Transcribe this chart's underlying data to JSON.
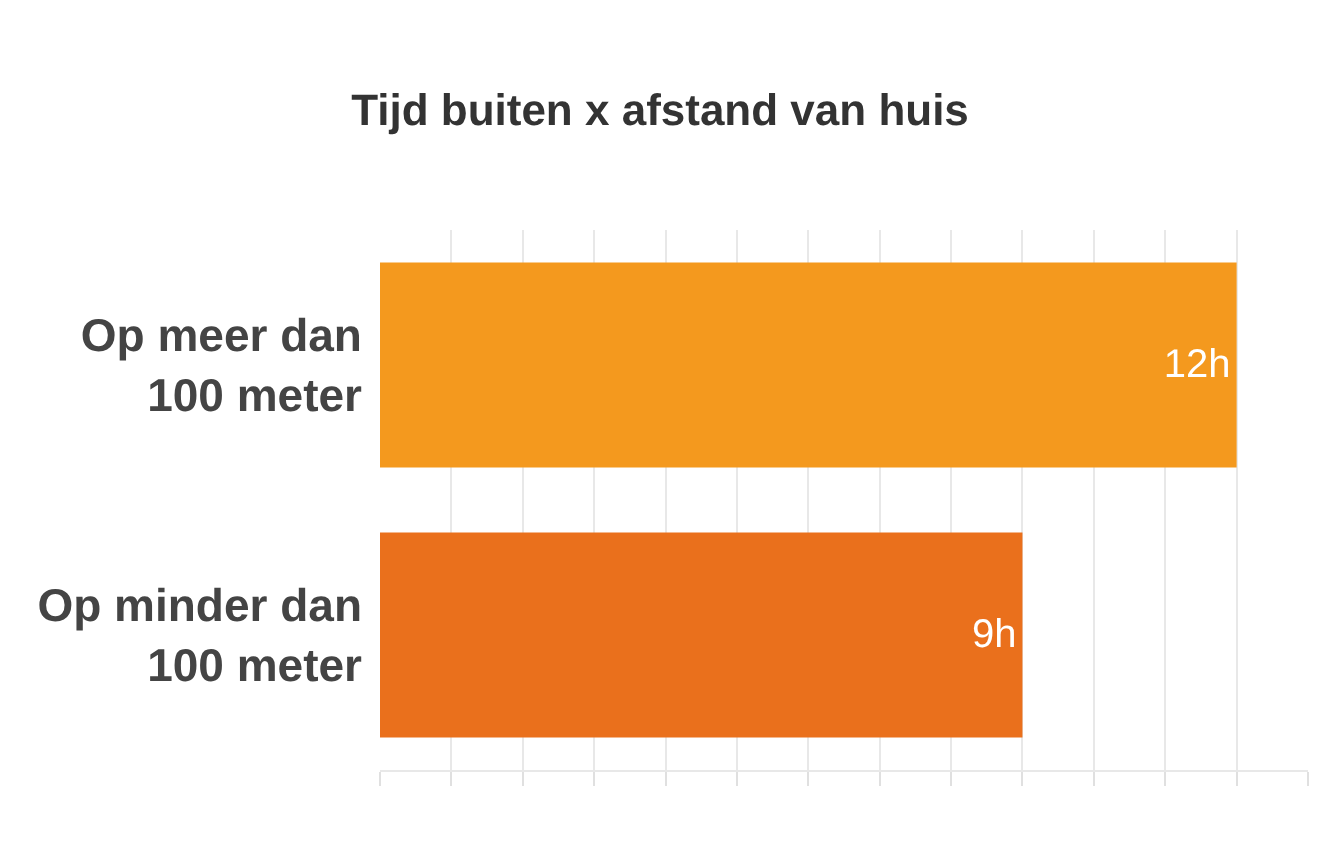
{
  "chart_data": {
    "type": "bar",
    "orientation": "horizontal",
    "title": "Tijd buiten x afstand van huis",
    "categories": [
      "Op meer dan\n100 meter",
      "Op minder dan\n100 meter"
    ],
    "values": [
      12,
      9
    ],
    "colors": [
      "#f4991e",
      "#ea701c"
    ],
    "value_labels": [
      "12h",
      "9h"
    ],
    "xlim": [
      0,
      13
    ],
    "xticks": [
      {
        "value": 0,
        "label": null
      },
      {
        "value": 1,
        "label": null
      },
      {
        "value": 2,
        "label": null
      },
      {
        "value": 3,
        "label": null
      },
      {
        "value": 4,
        "label": null
      },
      {
        "value": 5,
        "label": null
      },
      {
        "value": 6,
        "label": null
      },
      {
        "value": 7,
        "label": null
      },
      {
        "value": 8,
        "label": null
      },
      {
        "value": 9,
        "label": null
      },
      {
        "value": 10,
        "label": null
      },
      {
        "value": 11,
        "label": null
      },
      {
        "value": 12,
        "label": null
      },
      {
        "value": 13,
        "label": null
      }
    ],
    "grid": "x",
    "tick_labels": "y"
  }
}
